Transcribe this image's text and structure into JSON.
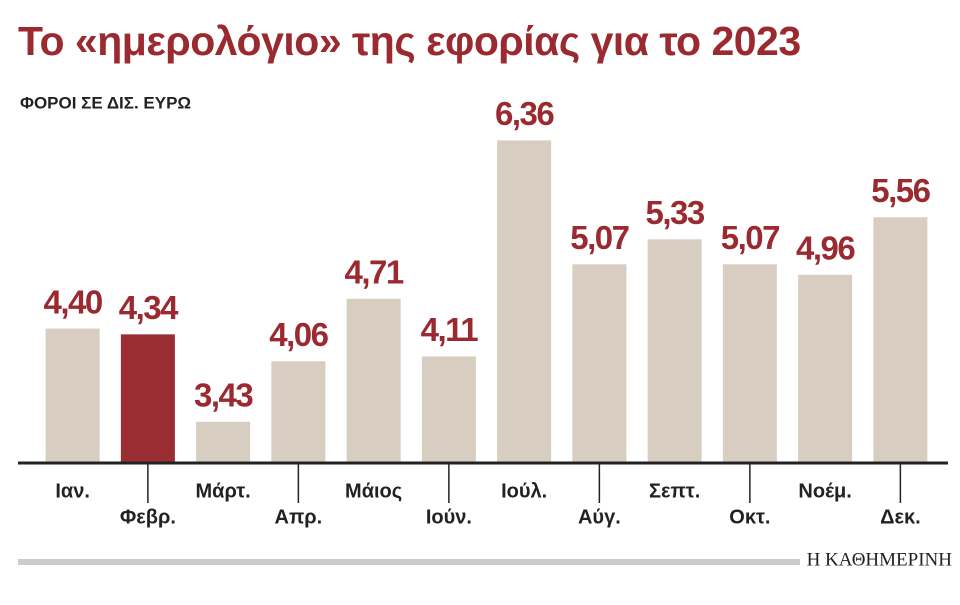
{
  "chart_data": {
    "type": "bar",
    "title": "Το «ημερολόγιο» της εφορίας για το 2023",
    "subtitle": "ΦΟΡΟΙ ΣΕ ΔΙΣ. ΕΥΡΩ",
    "source": "Η ΚΑΘΗΜΕΡΙΝΗ",
    "categories": [
      "Ιαν.",
      "Φεβρ.",
      "Μάρτ.",
      "Απρ.",
      "Μάιος",
      "Ιούν.",
      "Ιούλ.",
      "Αύγ.",
      "Σεπτ.",
      "Οκτ.",
      "Νοέμ.",
      "Δεκ."
    ],
    "values": [
      4.4,
      4.34,
      3.43,
      4.06,
      4.71,
      4.11,
      6.36,
      5.07,
      5.33,
      5.07,
      4.96,
      5.56
    ],
    "value_labels": [
      "4,40",
      "4,34",
      "3,43",
      "4,06",
      "4,71",
      "4,11",
      "6,36",
      "5,07",
      "5,33",
      "5,07",
      "4,96",
      "5,56"
    ],
    "colors": [
      "#d8cdc1",
      "#992d31",
      "#d8cdc1",
      "#d8cdc1",
      "#d8cdc1",
      "#d8cdc1",
      "#d8cdc1",
      "#d8cdc1",
      "#d8cdc1",
      "#d8cdc1",
      "#d8cdc1",
      "#d8cdc1"
    ],
    "label_color": "#9b2a30",
    "ylim": [
      3,
      6.5
    ]
  }
}
